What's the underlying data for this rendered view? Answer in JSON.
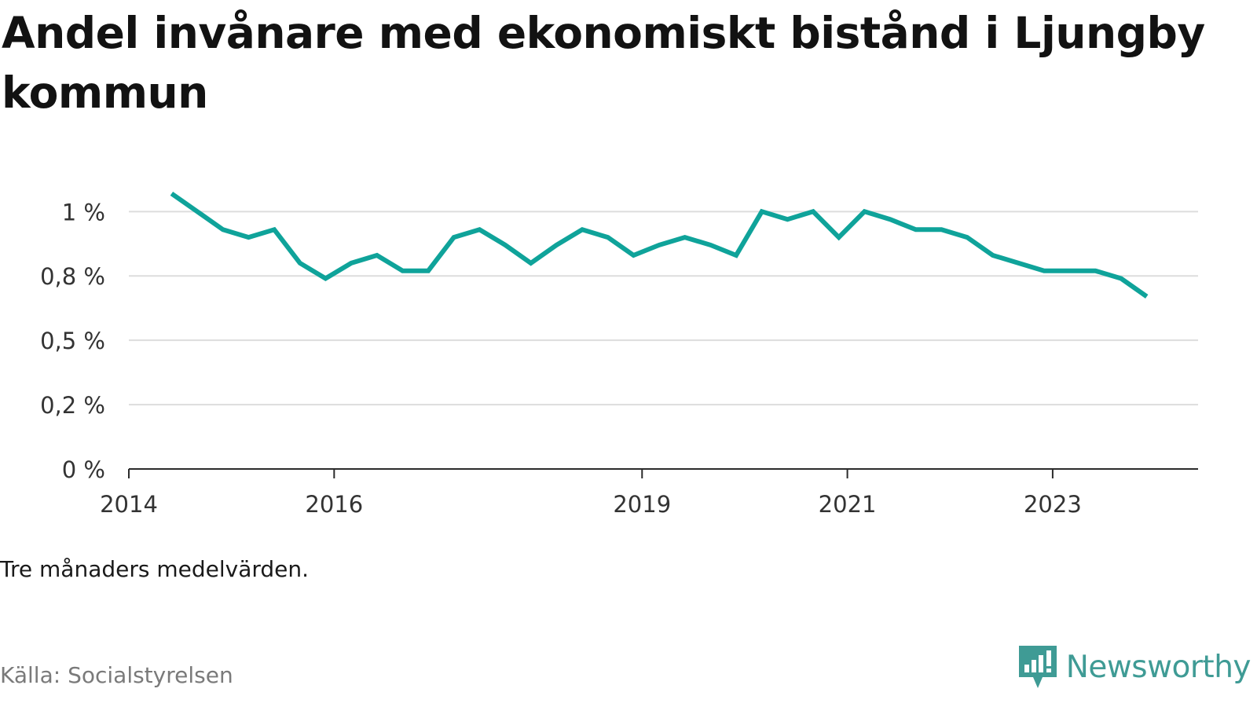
{
  "chart_data": {
    "type": "line",
    "title": "Andel invånare med ekonomiskt bistånd i Ljungby kommun",
    "xlabel": "",
    "ylabel": "",
    "x_tick_labels": [
      "2014",
      "2016",
      "2019",
      "2021",
      "2023"
    ],
    "y_tick_labels": [
      "0 %",
      "0,2 %",
      "0,5 %",
      "0,8 %",
      "1 %"
    ],
    "y_ticks": [
      0,
      0.25,
      0.5,
      0.75,
      1.0
    ],
    "ylim": [
      0,
      1.12
    ],
    "xlim": [
      "2014-01",
      "2024-06"
    ],
    "grid": true,
    "legend": "none",
    "line_color": "#0fa39a",
    "series": [
      {
        "x": [
          "2014-06",
          "2014-09",
          "2014-12",
          "2015-03",
          "2015-06",
          "2015-09",
          "2015-12",
          "2016-03",
          "2016-06",
          "2016-09",
          "2016-12",
          "2017-03",
          "2017-06",
          "2017-09",
          "2017-12",
          "2018-03",
          "2018-06",
          "2018-09",
          "2018-12",
          "2019-03",
          "2019-06",
          "2019-09",
          "2019-12",
          "2020-03",
          "2020-06",
          "2020-09",
          "2020-12",
          "2021-03",
          "2021-06",
          "2021-09",
          "2021-12",
          "2022-03",
          "2022-06",
          "2022-09",
          "2022-12",
          "2023-03",
          "2023-06",
          "2023-09",
          "2023-12"
        ],
        "values": [
          1.07,
          1.0,
          0.93,
          0.9,
          0.93,
          0.8,
          0.74,
          0.8,
          0.83,
          0.77,
          0.77,
          0.9,
          0.93,
          0.87,
          0.8,
          0.87,
          0.93,
          0.9,
          0.83,
          0.87,
          0.9,
          0.87,
          0.83,
          1.0,
          0.97,
          1.0,
          0.9,
          1.0,
          0.97,
          0.93,
          0.93,
          0.9,
          0.83,
          0.8,
          0.77,
          0.77,
          0.77,
          0.74,
          0.67
        ]
      }
    ]
  },
  "footer": {
    "note": "Tre månaders medelvärden.",
    "source": "Källa: Socialstyrelsen",
    "brand": "Newsworthy",
    "brand_icon": "newsworthy-chart-bubble-icon"
  }
}
